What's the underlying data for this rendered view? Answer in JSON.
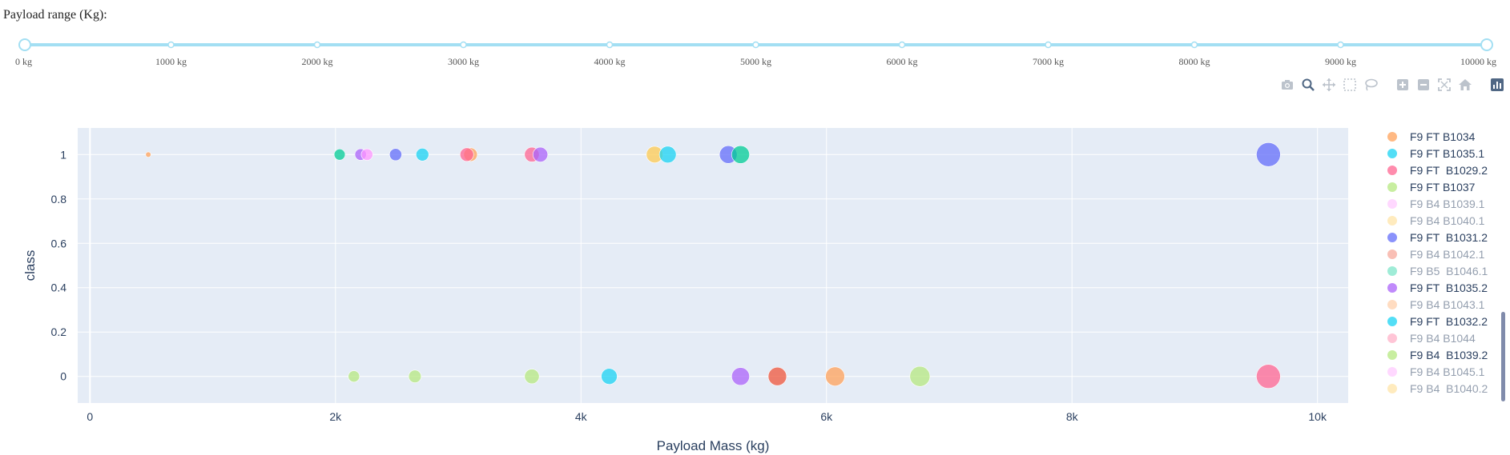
{
  "header": {
    "title": "Payload range (Kg):"
  },
  "slider": {
    "min": 0,
    "max": 10000,
    "value": [
      0,
      10000
    ],
    "marks": [
      {
        "v": 0,
        "label": "0 kg"
      },
      {
        "v": 1000,
        "label": "1000 kg"
      },
      {
        "v": 2000,
        "label": "2000 kg"
      },
      {
        "v": 3000,
        "label": "3000 kg"
      },
      {
        "v": 4000,
        "label": "4000 kg"
      },
      {
        "v": 5000,
        "label": "5000 kg"
      },
      {
        "v": 6000,
        "label": "6000 kg"
      },
      {
        "v": 7000,
        "label": "7000 kg"
      },
      {
        "v": 8000,
        "label": "8000 kg"
      },
      {
        "v": 9000,
        "label": "9000 kg"
      },
      {
        "v": 10000,
        "label": "10000 kg"
      }
    ],
    "track_color": "#a3dff3",
    "handle_color": "#a3dff3"
  },
  "modebar": {
    "buttons": [
      "camera-icon",
      "zoom-icon",
      "pan-icon",
      "box-select-icon",
      "lasso-select-icon",
      "zoom-in-icon",
      "zoom-out-icon",
      "autoscale-icon",
      "reset-axes-icon",
      "plotly-logo-icon"
    ],
    "active": "zoom-icon"
  },
  "chart_data": {
    "type": "scatter",
    "xlabel": "Payload Mass (kg)",
    "ylabel": "class",
    "xlim": [
      -100,
      10250
    ],
    "ylim": [
      -0.12,
      1.12
    ],
    "xticks": [
      {
        "v": 0,
        "label": "0"
      },
      {
        "v": 2000,
        "label": "2k"
      },
      {
        "v": 4000,
        "label": "4k"
      },
      {
        "v": 6000,
        "label": "6k"
      },
      {
        "v": 8000,
        "label": "8k"
      },
      {
        "v": 10000,
        "label": "10k"
      }
    ],
    "yticks": [
      {
        "v": 0,
        "label": "0"
      },
      {
        "v": 0.2,
        "label": "0.2"
      },
      {
        "v": 0.4,
        "label": "0.4"
      },
      {
        "v": 0.6,
        "label": "0.6"
      },
      {
        "v": 0.8,
        "label": "0.8"
      },
      {
        "v": 1,
        "label": "1"
      }
    ],
    "size_max": 9600,
    "plot_bg": "#e5ecf6",
    "grid": true,
    "legend_position": "right",
    "points": [
      {
        "x": 475,
        "y": 1,
        "color": "#ffa15a"
      },
      {
        "x": 2034,
        "y": 1,
        "color": "#00cc96"
      },
      {
        "x": 2205,
        "y": 1,
        "color": "#ab63fa"
      },
      {
        "x": 2257,
        "y": 1,
        "color": "#ff97ff"
      },
      {
        "x": 2490,
        "y": 1,
        "color": "#636efa"
      },
      {
        "x": 2708,
        "y": 1,
        "color": "#19d3f3"
      },
      {
        "x": 3100,
        "y": 1,
        "color": "#ffa15a"
      },
      {
        "x": 3070,
        "y": 1,
        "color": "#ff6692"
      },
      {
        "x": 3600,
        "y": 1,
        "color": "#ff6692"
      },
      {
        "x": 3669,
        "y": 1,
        "color": "#ab63fa"
      },
      {
        "x": 4600,
        "y": 1,
        "color": "#fecb52"
      },
      {
        "x": 4707,
        "y": 1,
        "color": "#19d3f3"
      },
      {
        "x": 5200,
        "y": 1,
        "color": "#636efa"
      },
      {
        "x": 5300,
        "y": 1,
        "color": "#00cc96"
      },
      {
        "x": 9600,
        "y": 1,
        "color": "#636efa"
      },
      {
        "x": 2150,
        "y": 0,
        "color": "#b6e880"
      },
      {
        "x": 2647,
        "y": 0,
        "color": "#b6e880"
      },
      {
        "x": 3600,
        "y": 0,
        "color": "#b6e880"
      },
      {
        "x": 4230,
        "y": 0,
        "color": "#19d3f3"
      },
      {
        "x": 5300,
        "y": 0,
        "color": "#ab63fa"
      },
      {
        "x": 5600,
        "y": 0,
        "color": "#ef553b"
      },
      {
        "x": 6070,
        "y": 0,
        "color": "#ffa15a"
      },
      {
        "x": 6761,
        "y": 0,
        "color": "#b6e880"
      },
      {
        "x": 9600,
        "y": 0,
        "color": "#ff6692"
      }
    ],
    "legend": [
      {
        "label": "F9 FT B1034",
        "color": "#ffa15a",
        "visible": true
      },
      {
        "label": "F9 FT B1035.1",
        "color": "#19d3f3",
        "visible": true
      },
      {
        "label": "F9 FT  B1029.2",
        "color": "#ff6692",
        "visible": true
      },
      {
        "label": "F9 FT B1037",
        "color": "#b6e880",
        "visible": true
      },
      {
        "label": "F9 B4 B1039.1",
        "color": "#ff97ff",
        "visible": false
      },
      {
        "label": "F9 B4 B1040.1",
        "color": "#fecb52",
        "visible": false
      },
      {
        "label": "F9 FT  B1031.2",
        "color": "#636efa",
        "visible": true
      },
      {
        "label": "F9 B4 B1042.1",
        "color": "#ef553b",
        "visible": false
      },
      {
        "label": "F9 B5  B1046.1",
        "color": "#00cc96",
        "visible": false
      },
      {
        "label": "F9 FT  B1035.2",
        "color": "#ab63fa",
        "visible": true
      },
      {
        "label": "F9 B4 B1043.1",
        "color": "#ffa15a",
        "visible": false
      },
      {
        "label": "F9 FT  B1032.2",
        "color": "#19d3f3",
        "visible": true
      },
      {
        "label": "F9 B4 B1044",
        "color": "#ff6692",
        "visible": false
      },
      {
        "label": "F9 B4  B1039.2",
        "color": "#b6e880",
        "visible": true
      },
      {
        "label": "F9 B4 B1045.1",
        "color": "#ff97ff",
        "visible": false
      },
      {
        "label": "F9 B4  B1040.2",
        "color": "#fecb52",
        "visible": false
      }
    ]
  }
}
